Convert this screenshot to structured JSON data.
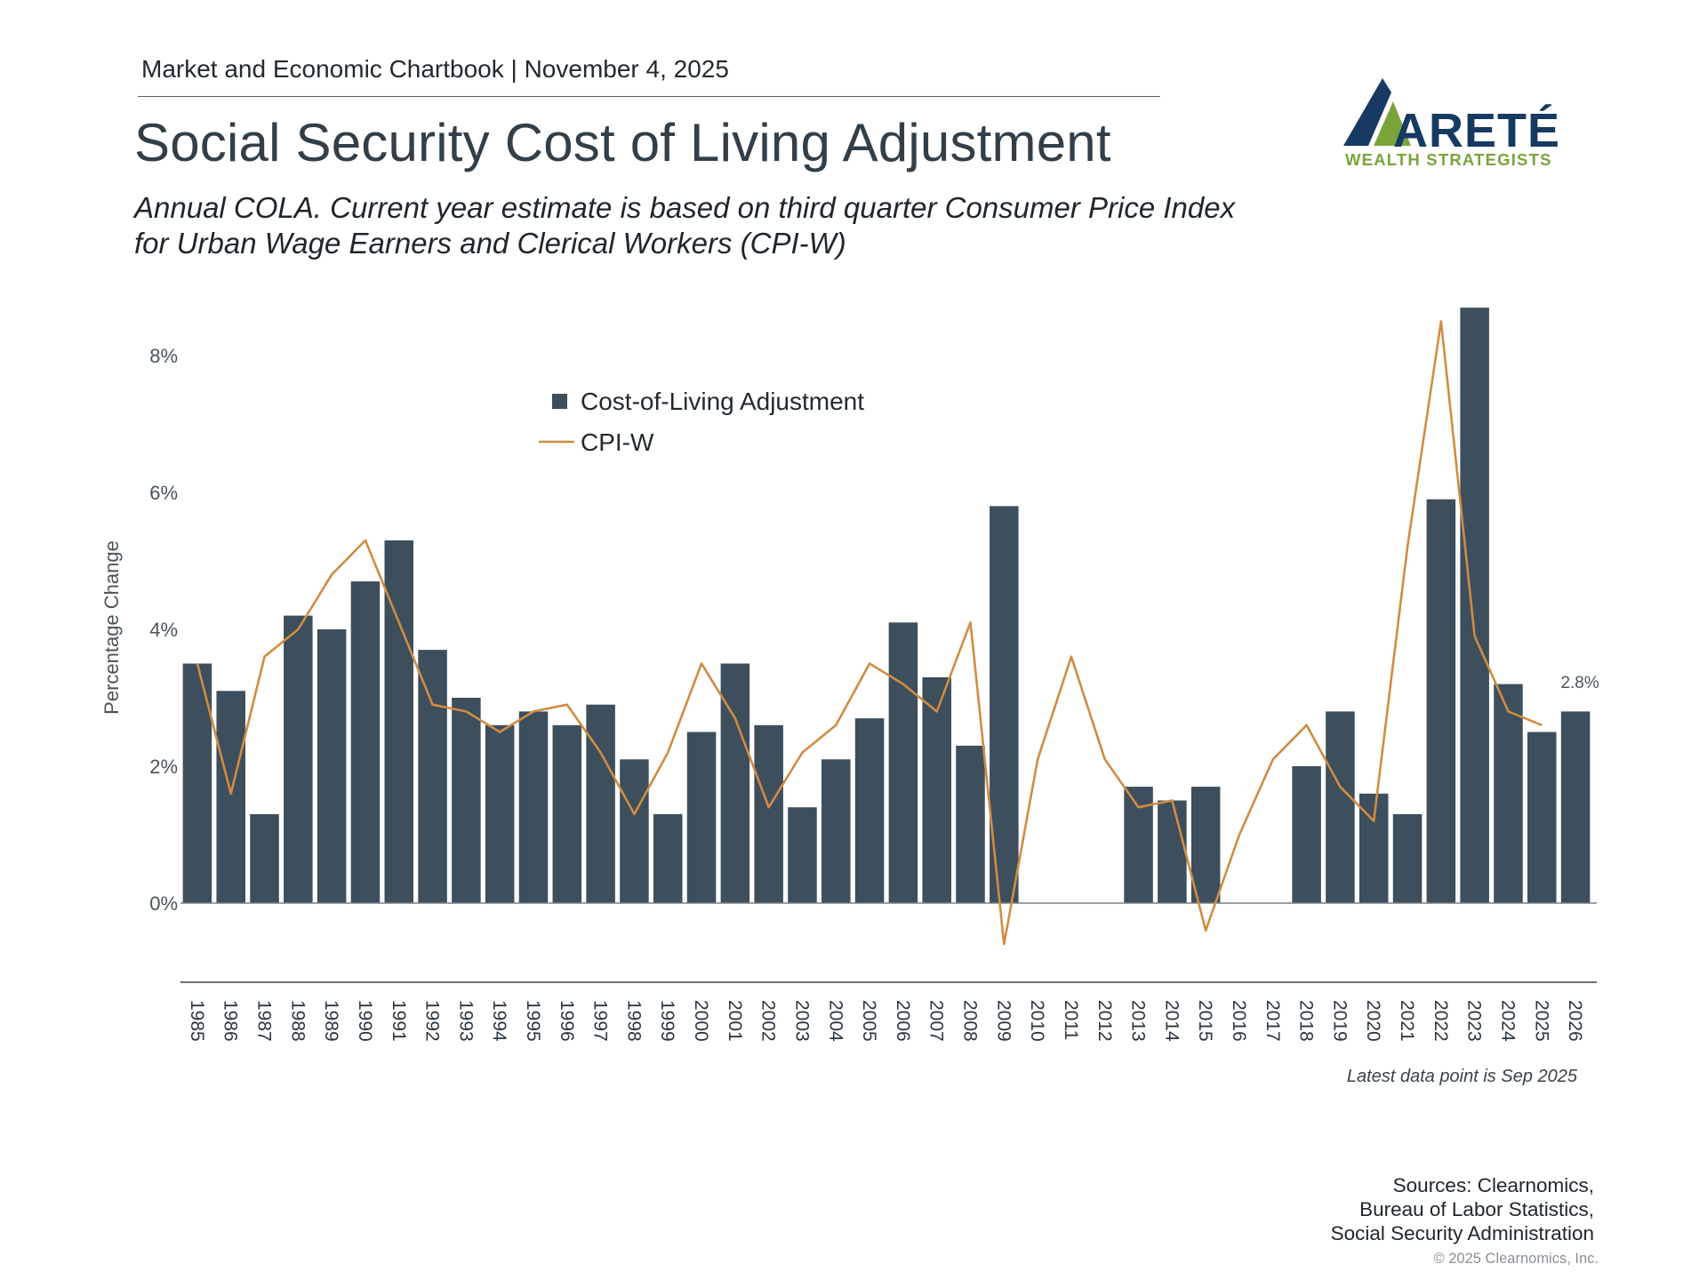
{
  "header": {
    "line": "Market and Economic Chartbook | November 4, 2025",
    "title": "Social Security Cost of Living Adjustment",
    "subtitle": "Annual COLA. Current year estimate is based on third quarter Consumer Price Index for Urban Wage Earners and Clerical Workers (CPI-W)"
  },
  "logo": {
    "word": "ARETÉ",
    "tagline": "WEALTH STRATEGISTS",
    "colors": {
      "navy": "#173a62",
      "green": "#7aa43a"
    }
  },
  "chart_data": {
    "type": "bar",
    "title": "",
    "xlabel": "",
    "ylabel": "Percentage Change",
    "ylim": [
      -1.2,
      8.8
    ],
    "yticks": [
      0,
      2,
      4,
      6,
      8
    ],
    "ytick_labels": [
      "0%",
      "2%",
      "4%",
      "6%",
      "8%"
    ],
    "grid": false,
    "legend_position": "top-center",
    "categories": [
      "1985",
      "1986",
      "1987",
      "1988",
      "1989",
      "1990",
      "1991",
      "1992",
      "1993",
      "1994",
      "1995",
      "1996",
      "1997",
      "1998",
      "1999",
      "2000",
      "2001",
      "2002",
      "2003",
      "2004",
      "2005",
      "2006",
      "2007",
      "2008",
      "2009",
      "2010",
      "2011",
      "2012",
      "2013",
      "2014",
      "2015",
      "2016",
      "2017",
      "2018",
      "2019",
      "2020",
      "2021",
      "2022",
      "2023",
      "2024",
      "2025",
      "2026"
    ],
    "series": [
      {
        "name": "Cost-of-Living Adjustment",
        "kind": "bar",
        "color": "#3d4e5d",
        "values": [
          3.5,
          3.1,
          1.3,
          4.2,
          4.0,
          4.7,
          5.3,
          3.7,
          3.0,
          2.6,
          2.8,
          2.6,
          2.9,
          2.1,
          1.3,
          2.5,
          3.5,
          2.6,
          1.4,
          2.1,
          2.7,
          4.1,
          3.3,
          2.3,
          5.8,
          0.0,
          0.0,
          0.0,
          1.7,
          1.5,
          1.7,
          0.0,
          0.0,
          2.0,
          2.8,
          1.6,
          1.3,
          5.9,
          8.7,
          3.2,
          2.5,
          2.8
        ]
      },
      {
        "name": "CPI-W",
        "kind": "line",
        "color": "#d08c42",
        "values": [
          3.5,
          1.6,
          3.6,
          4.0,
          4.8,
          5.3,
          4.1,
          2.9,
          2.8,
          2.5,
          2.8,
          2.9,
          2.2,
          1.3,
          2.2,
          3.5,
          2.7,
          1.4,
          2.2,
          2.6,
          3.5,
          3.2,
          2.8,
          4.1,
          -0.6,
          2.1,
          3.6,
          2.1,
          1.4,
          1.5,
          -0.4,
          1.0,
          2.1,
          2.6,
          1.7,
          1.2,
          5.2,
          8.5,
          3.9,
          2.8,
          2.6,
          null
        ]
      }
    ],
    "annotations": [
      {
        "category": "2026",
        "text": "2.8%"
      }
    ]
  },
  "footer": {
    "note": "Latest data point is Sep 2025",
    "sources": [
      "Sources: Clearnomics,",
      "Bureau of Labor Statistics,",
      "Social Security Administration"
    ],
    "copyright": "© 2025 Clearnomics, Inc."
  }
}
